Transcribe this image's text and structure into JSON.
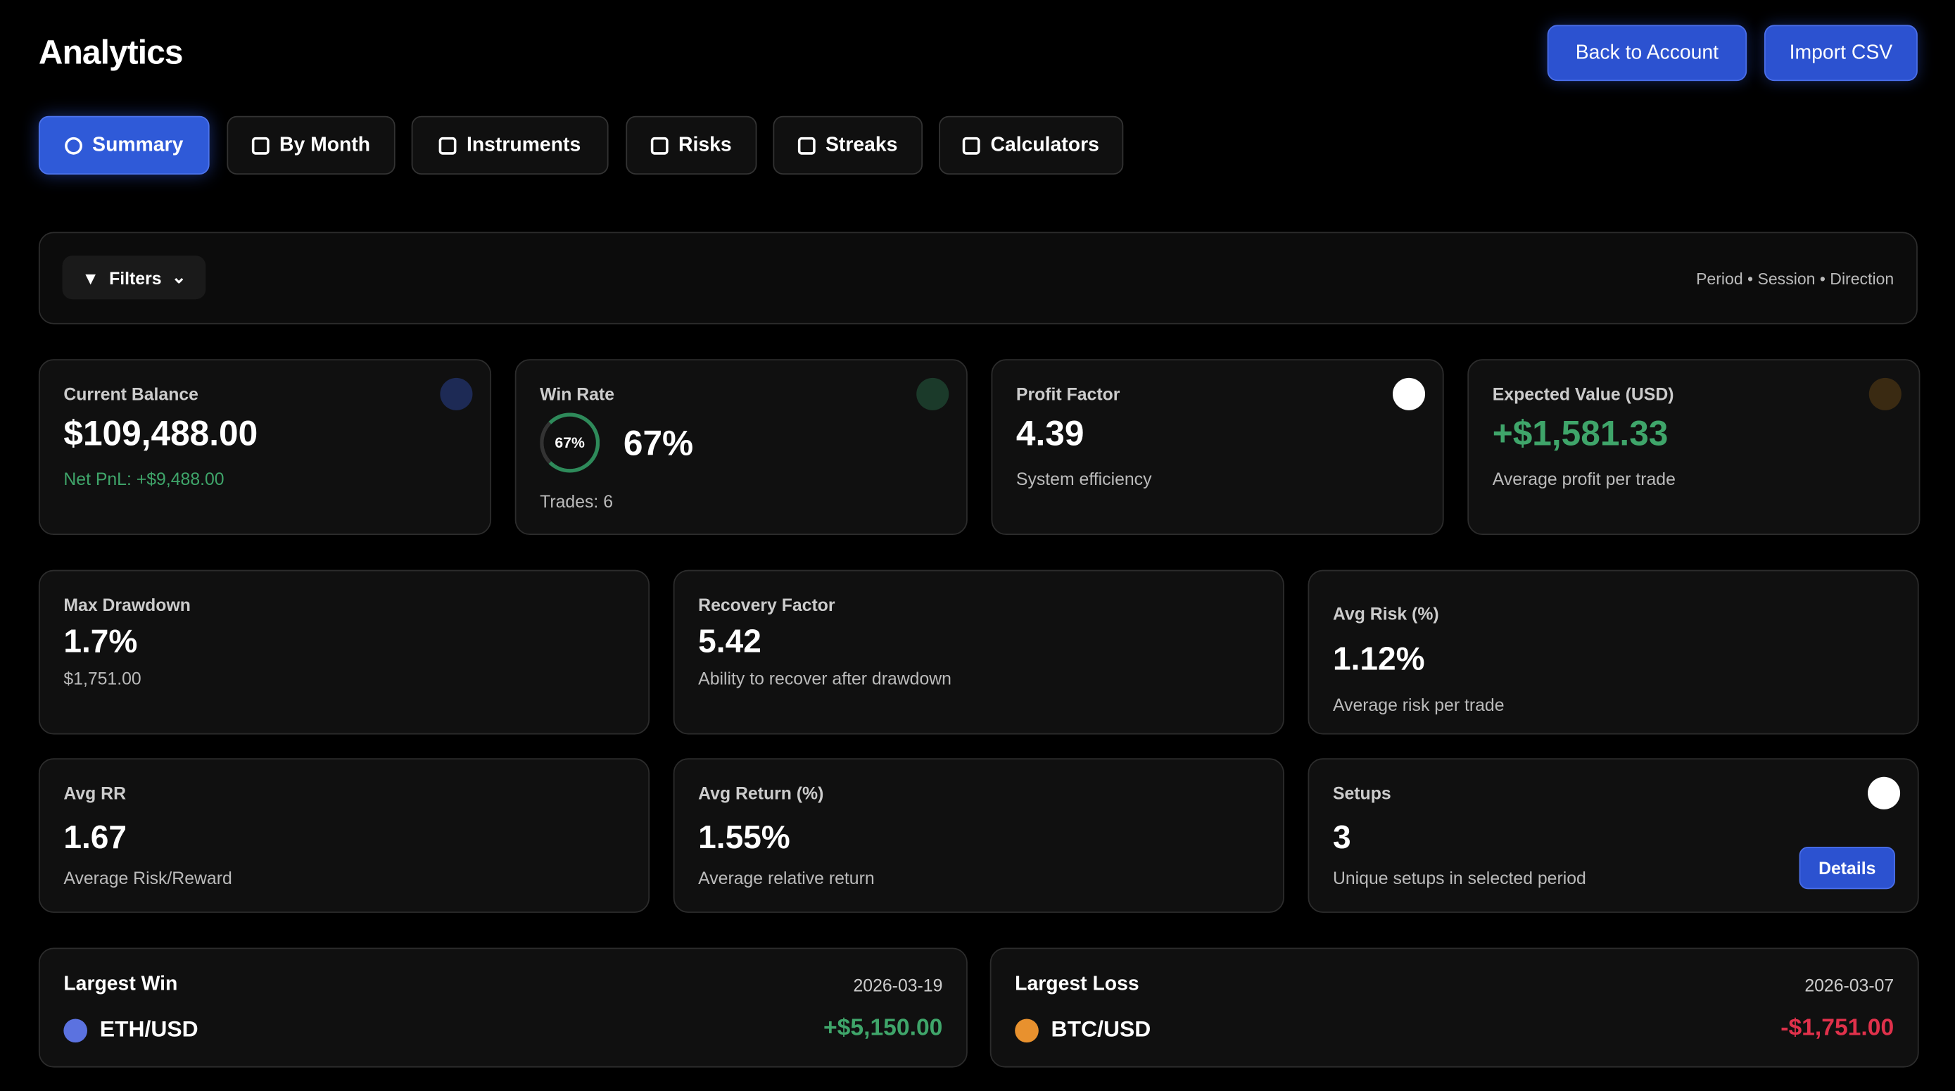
{
  "header": {
    "title": "Analytics",
    "buttons": [
      "Back to Account",
      "Import CSV"
    ]
  },
  "tabs": [
    "Summary",
    "By Month",
    "Instruments",
    "Risks",
    "Streaks",
    "Calculators"
  ],
  "filters": {
    "label": "Filters",
    "summary": "Period • Session • Direction"
  },
  "top_cards": [
    {
      "label": "Current Balance",
      "value": "$109,488.00",
      "note": "Net PnL: +$9,488.00"
    },
    {
      "label": "Win Rate",
      "value": "67%",
      "note": "Trades: 6"
    },
    {
      "label": "Profit Factor",
      "value": "4.39",
      "note": "System efficiency"
    },
    {
      "label": "Expected Value (USD)",
      "value": "+$1,581.33",
      "note": "Average profit per trade"
    }
  ],
  "mid_cards": [
    {
      "label": "Max Drawdown",
      "value": "1.7%",
      "note": "$1,751.00"
    },
    {
      "label": "Recovery Factor",
      "value": "5.42",
      "note": "Ability to recover after drawdown"
    },
    {
      "label": "Avg Risk (%)",
      "value": "1.12%",
      "note": "Average risk per trade"
    },
    {
      "label": "Avg RR",
      "value": "1.67",
      "note": "Average Risk/Reward"
    },
    {
      "label": "Avg Return (%)",
      "value": "1.55%",
      "note": "Average relative return"
    },
    {
      "label": "Setups",
      "value": "3",
      "note": "Unique setups in selected period",
      "button": "Details"
    }
  ],
  "extremes": [
    {
      "label": "Largest Win",
      "date": "2026-03-19",
      "instrument": "ETH/USD",
      "amount": "+$5,150.00"
    },
    {
      "label": "Largest Loss",
      "date": "2026-03-07",
      "instrument": "BTC/USD",
      "amount": "-$1,751.00"
    }
  ]
}
